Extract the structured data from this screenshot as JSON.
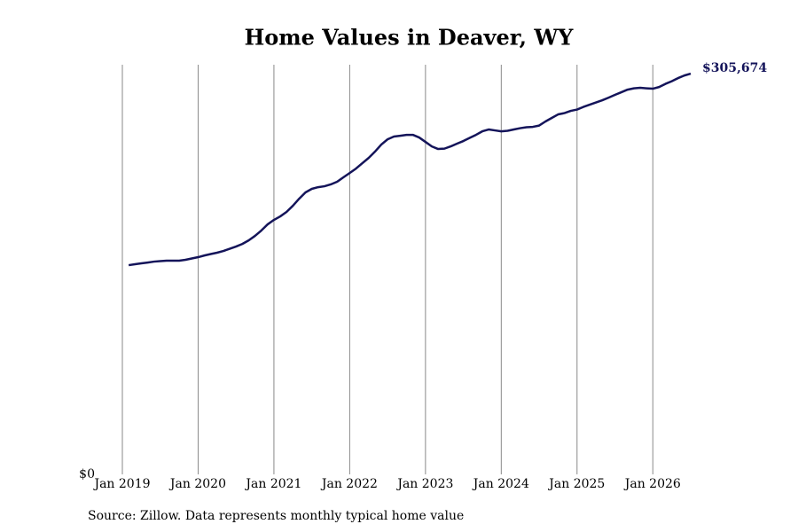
{
  "chart_data": {
    "type": "line",
    "title": "Home Values in Deaver, WY",
    "source": "Source: Zillow. Data represents monthly typical home value",
    "x": [
      "2019-02",
      "2019-03",
      "2019-04",
      "2019-05",
      "2019-06",
      "2019-07",
      "2019-08",
      "2019-09",
      "2019-10",
      "2019-11",
      "2019-12",
      "2020-01",
      "2020-02",
      "2020-03",
      "2020-04",
      "2020-05",
      "2020-06",
      "2020-07",
      "2020-08",
      "2020-09",
      "2020-10",
      "2020-11",
      "2020-12",
      "2021-01",
      "2021-02",
      "2021-03",
      "2021-04",
      "2021-05",
      "2021-06",
      "2021-07",
      "2021-08",
      "2021-09",
      "2021-10",
      "2021-11",
      "2021-12",
      "2022-01",
      "2022-02",
      "2022-03",
      "2022-04",
      "2022-05",
      "2022-06",
      "2022-07",
      "2022-08",
      "2022-09",
      "2022-10",
      "2022-11",
      "2022-12",
      "2023-01",
      "2023-02",
      "2023-03",
      "2023-04",
      "2023-05",
      "2023-06",
      "2023-07",
      "2023-08",
      "2023-09",
      "2023-10",
      "2023-11",
      "2023-12",
      "2024-01",
      "2024-02",
      "2024-03",
      "2024-04",
      "2024-05",
      "2024-06",
      "2024-07",
      "2024-08",
      "2024-09",
      "2024-10",
      "2024-11",
      "2024-12",
      "2025-01",
      "2025-02",
      "2025-03",
      "2025-04",
      "2025-05",
      "2025-06",
      "2025-07",
      "2025-08",
      "2025-09",
      "2025-10",
      "2025-11",
      "2025-12",
      "2026-01",
      "2026-02",
      "2026-03",
      "2026-04",
      "2026-05",
      "2026-06",
      "2026-07"
    ],
    "series": [
      {
        "color": "#14145a",
        "values": [
          159600,
          160300,
          161000,
          161600,
          162300,
          162700,
          163000,
          163000,
          163000,
          163700,
          164700,
          165700,
          167000,
          168100,
          169100,
          170400,
          172100,
          173800,
          175800,
          178500,
          181900,
          186000,
          190700,
          194100,
          196800,
          200200,
          204900,
          210300,
          215100,
          217800,
          219100,
          219800,
          221200,
          223200,
          226600,
          229900,
          233300,
          237400,
          241400,
          246200,
          251600,
          255600,
          257700,
          258300,
          259000,
          259000,
          257000,
          253600,
          250200,
          248200,
          248500,
          250200,
          252300,
          254300,
          256700,
          259000,
          261700,
          263100,
          262400,
          261700,
          262100,
          263100,
          264100,
          264800,
          265100,
          266100,
          269200,
          271900,
          274600,
          275600,
          277300,
          278300,
          280300,
          282000,
          283700,
          285400,
          287400,
          289500,
          291500,
          293500,
          294500,
          294900,
          294500,
          294200,
          295500,
          297900,
          299900,
          302300,
          304300,
          305674
        ],
        "value_labels": [
          null,
          null,
          null,
          null,
          null,
          null,
          null,
          null,
          null,
          null,
          null,
          null,
          null,
          null,
          null,
          null,
          null,
          null,
          null,
          null,
          null,
          null,
          null,
          null,
          null,
          null,
          null,
          null,
          null,
          null,
          null,
          null,
          null,
          null,
          null,
          null,
          null,
          null,
          null,
          null,
          null,
          null,
          null,
          null,
          null,
          null,
          null,
          null,
          null,
          null,
          null,
          null,
          null,
          null,
          null,
          null,
          null,
          null,
          null,
          null,
          null,
          null,
          null,
          null,
          null,
          null,
          null,
          null,
          null,
          null,
          null,
          null,
          null,
          null,
          null,
          null,
          null,
          null,
          null,
          null,
          null,
          null,
          null,
          null,
          null,
          null,
          null,
          null,
          null,
          "$305,674"
        ]
      }
    ],
    "xlim": [
      "2019-01",
      "2026-07"
    ],
    "xticks": [
      {
        "value": "2019-01",
        "label": "Jan 2019"
      },
      {
        "value": "2020-01",
        "label": "Jan 2020"
      },
      {
        "value": "2021-01",
        "label": "Jan 2021"
      },
      {
        "value": "2022-01",
        "label": "Jan 2022"
      },
      {
        "value": "2023-01",
        "label": "Jan 2023"
      },
      {
        "value": "2024-01",
        "label": "Jan 2024"
      },
      {
        "value": "2025-01",
        "label": "Jan 2025"
      },
      {
        "value": "2026-01",
        "label": "Jan 2026"
      }
    ],
    "ylim": [
      0,
      312500
    ],
    "yticks": [
      {
        "value": 0,
        "label": "$0"
      }
    ],
    "grid": true
  }
}
